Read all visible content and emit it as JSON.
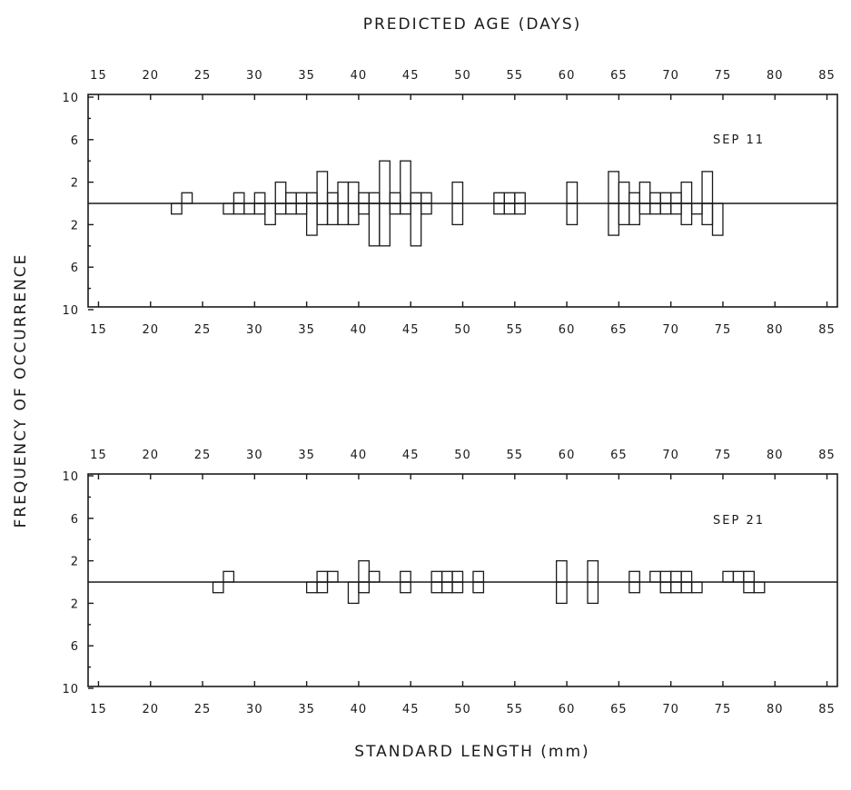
{
  "figure": {
    "top_title": "PREDICTED AGE (DAYS)",
    "bottom_title": "STANDARD LENGTH (mm)",
    "left_title": "FREQUENCY OF OCCURRENCE"
  },
  "chart_data": [
    {
      "type": "bar",
      "panel_label": "SEP 11",
      "top_axis": {
        "label": "PREDICTED AGE (DAYS)",
        "ticks": [
          15,
          20,
          25,
          30,
          35,
          40,
          45,
          50,
          55,
          60,
          65,
          70,
          75,
          80,
          85
        ]
      },
      "x_axis": {
        "label": "STANDARD LENGTH (mm)",
        "ticks": [
          15,
          20,
          25,
          30,
          35,
          40,
          45,
          50,
          55,
          60,
          65,
          70,
          75,
          80,
          85
        ],
        "range": [
          14,
          86
        ]
      },
      "y_axis": {
        "label": "FREQUENCY OF OCCURRENCE",
        "tick_labels": [
          "10",
          "6",
          "2",
          "2",
          "6",
          "10"
        ],
        "range": [
          -10,
          10
        ]
      },
      "series": [
        {
          "direction": "up",
          "x": [
            23.5,
            28.5,
            30.5,
            32.5,
            33.5,
            34.5,
            35.5,
            36.5,
            37.5,
            38.5,
            39.5,
            40.5,
            41.5,
            42.5,
            43.5,
            44.5,
            45.5,
            46.5,
            49.5,
            53.5,
            54.5,
            55.5,
            60.5,
            64.5,
            65.5,
            66.5,
            67.5,
            68.5,
            69.5,
            70.5,
            71.5,
            73.5
          ],
          "values": [
            1,
            1,
            1,
            2,
            1,
            1,
            1,
            3,
            1,
            2,
            2,
            1,
            1,
            4,
            1,
            4,
            1,
            1,
            2,
            1,
            1,
            1,
            2,
            3,
            2,
            1,
            2,
            1,
            1,
            1,
            2,
            3
          ]
        },
        {
          "direction": "down",
          "x": [
            22.5,
            27.5,
            28.5,
            29.5,
            30.5,
            31.5,
            32.5,
            33.5,
            34.5,
            35.5,
            36.5,
            37.5,
            38.5,
            39.5,
            40.5,
            41.5,
            42.5,
            43.5,
            44.5,
            45.5,
            46.5,
            49.5,
            53.5,
            54.5,
            55.5,
            60.5,
            64.5,
            65.5,
            66.5,
            67.5,
            68.5,
            69.5,
            70.5,
            71.5,
            72.5,
            73.5,
            74.5
          ],
          "values": [
            1,
            1,
            1,
            1,
            1,
            2,
            1,
            1,
            1,
            3,
            2,
            2,
            2,
            2,
            1,
            4,
            4,
            1,
            1,
            4,
            1,
            2,
            1,
            1,
            1,
            2,
            3,
            2,
            2,
            1,
            1,
            1,
            1,
            2,
            1,
            2,
            3
          ]
        }
      ]
    },
    {
      "type": "bar",
      "panel_label": "SEP 21",
      "top_axis": {
        "label": "PREDICTED AGE (DAYS)",
        "ticks": [
          15,
          20,
          25,
          30,
          35,
          40,
          45,
          50,
          55,
          60,
          65,
          70,
          75,
          80,
          85
        ]
      },
      "x_axis": {
        "label": "STANDARD LENGTH (mm)",
        "ticks": [
          15,
          20,
          25,
          30,
          35,
          40,
          45,
          50,
          55,
          60,
          65,
          70,
          75,
          80,
          85
        ],
        "range": [
          14,
          86
        ]
      },
      "y_axis": {
        "label": "FREQUENCY OF OCCURRENCE",
        "tick_labels": [
          "10",
          "6",
          "2",
          "2",
          "6",
          "10"
        ],
        "range": [
          -10,
          10
        ]
      },
      "series": [
        {
          "direction": "up",
          "x": [
            27.5,
            36.5,
            37.5,
            40.5,
            41.5,
            44.5,
            47.5,
            48.5,
            49.5,
            51.5,
            59.5,
            62.5,
            66.5,
            68.5,
            69.5,
            70.5,
            71.5,
            75.5,
            76.5,
            77.5
          ],
          "values": [
            1,
            1,
            1,
            2,
            1,
            1,
            1,
            1,
            1,
            1,
            2,
            2,
            1,
            1,
            1,
            1,
            1,
            1,
            1,
            1
          ]
        },
        {
          "direction": "down",
          "x": [
            26.5,
            35.5,
            36.5,
            39.5,
            40.5,
            44.5,
            47.5,
            48.5,
            49.5,
            51.5,
            59.5,
            62.5,
            66.5,
            69.5,
            70.5,
            71.5,
            72.5,
            77.5,
            78.5
          ],
          "values": [
            1,
            1,
            1,
            2,
            1,
            1,
            1,
            1,
            1,
            1,
            2,
            2,
            1,
            1,
            1,
            1,
            1,
            1,
            1
          ]
        }
      ]
    }
  ]
}
